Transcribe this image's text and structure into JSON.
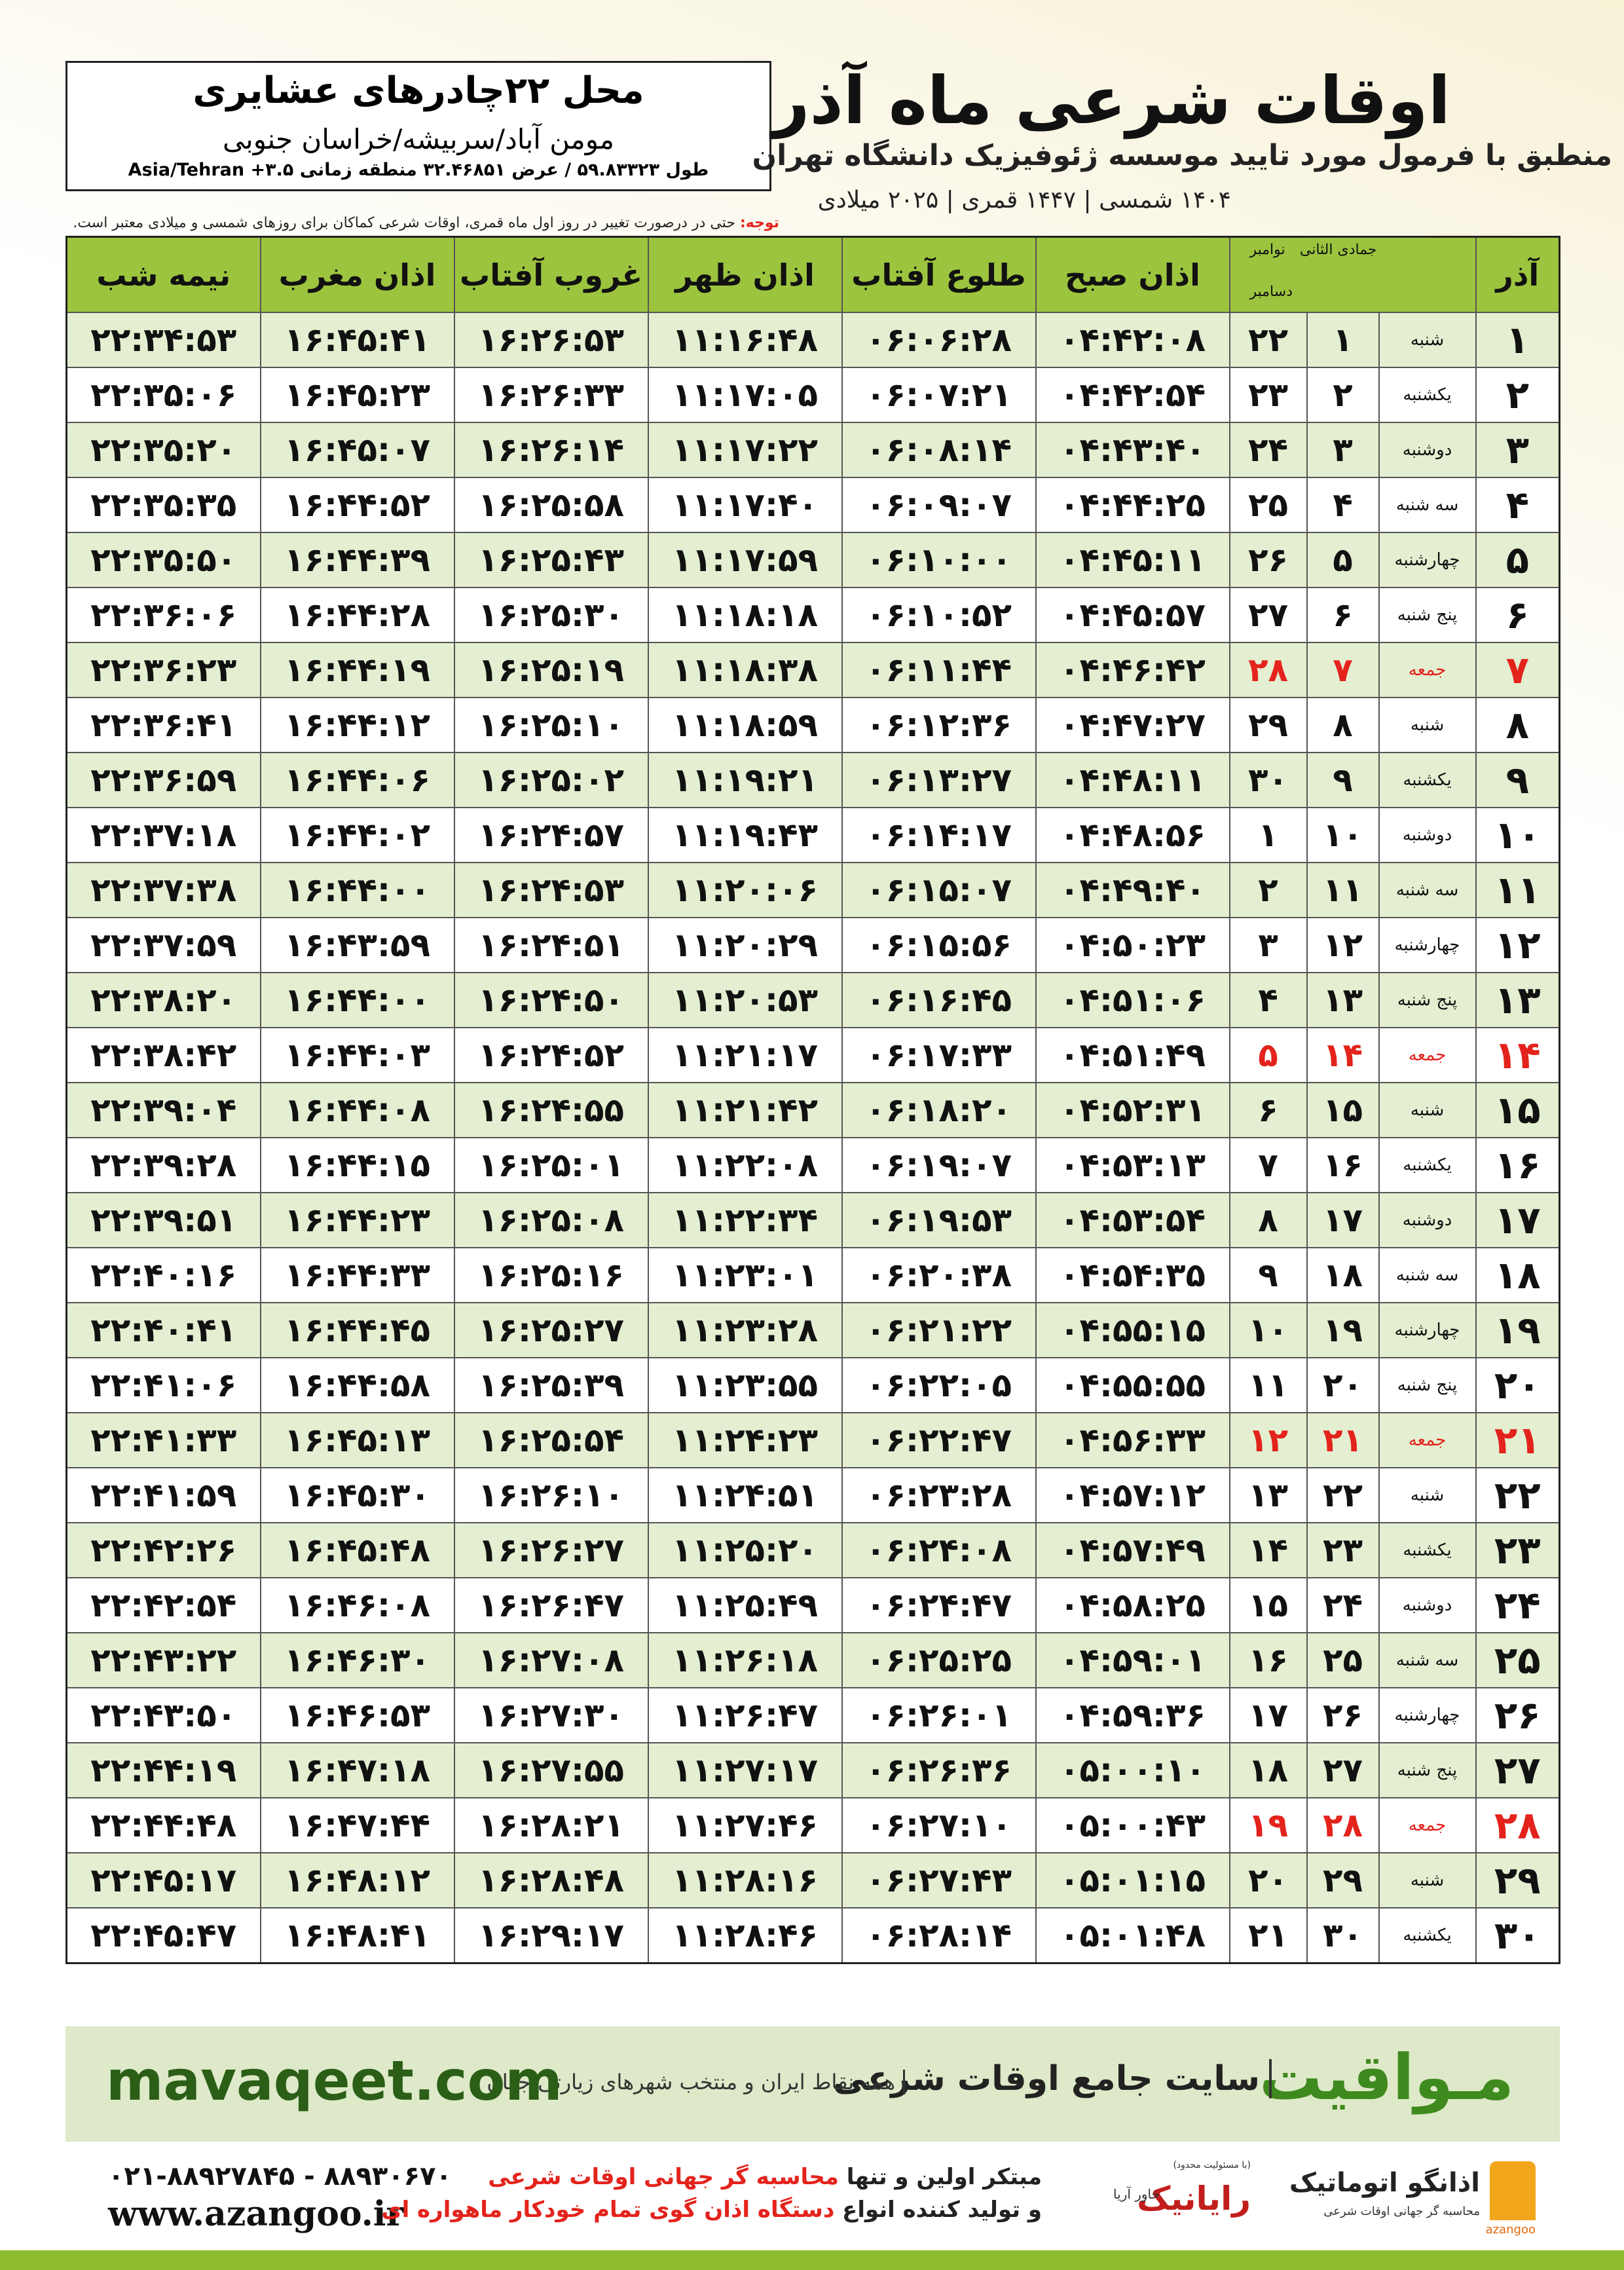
{
  "header": {
    "title": "اوقات شرعی ماه آذر",
    "subtitle": "منطبق با فرمول مورد تایید موسسه ژئوفیزیک دانشگاه تهران",
    "dates": "۱۴۰۴ شمسی | ۱۴۴۷ قمری | ۲۰۲۵ میلادی"
  },
  "location": {
    "name": "محل ۲۲چادرهای عشایری",
    "region": "مومن آباد/سربیشه/خراسان جنوبی",
    "coords": "طول ۵۹.۸۳۳۲۳ / عرض ۳۲.۴۶۸۵۱ منطقه زمانی ۳.۵+ Asia/Tehran"
  },
  "note": {
    "label": "توجه:",
    "text": "حتی در درصورت تغییر در روز اول ماه قمری، اوقات شرعی کماکان برای روزهای شمسی و میلادی معتبر است."
  },
  "table": {
    "month_header": "آذر",
    "lunar_header": "جمادی الثانی",
    "gregorian_headers": [
      "نوامبر",
      "دسامبر"
    ],
    "time_headers": [
      "اذان صبح",
      "طلوع آفتاب",
      "اذان ظهر",
      "غروب آفتاب",
      "اذان مغرب",
      "نیمه شب"
    ],
    "holiday_color": "#e3231c",
    "rows": [
      {
        "cells": [
          "۱",
          "شنبه",
          "۱",
          "۲۲",
          "۰۴:۴۲:۰۸",
          "۰۶:۰۶:۲۸",
          "۱۱:۱۶:۴۸",
          "۱۶:۲۶:۵۳",
          "۱۶:۴۵:۴۱",
          "۲۲:۳۴:۵۳"
        ]
      },
      {
        "cells": [
          "۲",
          "یکشنبه",
          "۲",
          "۲۳",
          "۰۴:۴۲:۵۴",
          "۰۶:۰۷:۲۱",
          "۱۱:۱۷:۰۵",
          "۱۶:۲۶:۳۳",
          "۱۶:۴۵:۲۳",
          "۲۲:۳۵:۰۶"
        ]
      },
      {
        "cells": [
          "۳",
          "دوشنبه",
          "۳",
          "۲۴",
          "۰۴:۴۳:۴۰",
          "۰۶:۰۸:۱۴",
          "۱۱:۱۷:۲۲",
          "۱۶:۲۶:۱۴",
          "۱۶:۴۵:۰۷",
          "۲۲:۳۵:۲۰"
        ]
      },
      {
        "cells": [
          "۴",
          "سه شنبه",
          "۴",
          "۲۵",
          "۰۴:۴۴:۲۵",
          "۰۶:۰۹:۰۷",
          "۱۱:۱۷:۴۰",
          "۱۶:۲۵:۵۸",
          "۱۶:۴۴:۵۲",
          "۲۲:۳۵:۳۵"
        ]
      },
      {
        "cells": [
          "۵",
          "چهارشنبه",
          "۵",
          "۲۶",
          "۰۴:۴۵:۱۱",
          "۰۶:۱۰:۰۰",
          "۱۱:۱۷:۵۹",
          "۱۶:۲۵:۴۳",
          "۱۶:۴۴:۳۹",
          "۲۲:۳۵:۵۰"
        ]
      },
      {
        "cells": [
          "۶",
          "پنج شنبه",
          "۶",
          "۲۷",
          "۰۴:۴۵:۵۷",
          "۰۶:۱۰:۵۲",
          "۱۱:۱۸:۱۸",
          "۱۶:۲۵:۳۰",
          "۱۶:۴۴:۲۸",
          "۲۲:۳۶:۰۶"
        ]
      },
      {
        "cells": [
          "۷",
          "جمعه",
          "۷",
          "۲۸",
          "۰۴:۴۶:۴۲",
          "۰۶:۱۱:۴۴",
          "۱۱:۱۸:۳۸",
          "۱۶:۲۵:۱۹",
          "۱۶:۴۴:۱۹",
          "۲۲:۳۶:۲۳"
        ],
        "holiday": true
      },
      {
        "cells": [
          "۸",
          "شنبه",
          "۸",
          "۲۹",
          "۰۴:۴۷:۲۷",
          "۰۶:۱۲:۳۶",
          "۱۱:۱۸:۵۹",
          "۱۶:۲۵:۱۰",
          "۱۶:۴۴:۱۲",
          "۲۲:۳۶:۴۱"
        ]
      },
      {
        "cells": [
          "۹",
          "یکشنبه",
          "۹",
          "۳۰",
          "۰۴:۴۸:۱۱",
          "۰۶:۱۳:۲۷",
          "۱۱:۱۹:۲۱",
          "۱۶:۲۵:۰۲",
          "۱۶:۴۴:۰۶",
          "۲۲:۳۶:۵۹"
        ]
      },
      {
        "cells": [
          "۱۰",
          "دوشنبه",
          "۱۰",
          "۱",
          "۰۴:۴۸:۵۶",
          "۰۶:۱۴:۱۷",
          "۱۱:۱۹:۴۳",
          "۱۶:۲۴:۵۷",
          "۱۶:۴۴:۰۲",
          "۲۲:۳۷:۱۸"
        ]
      },
      {
        "cells": [
          "۱۱",
          "سه شنبه",
          "۱۱",
          "۲",
          "۰۴:۴۹:۴۰",
          "۰۶:۱۵:۰۷",
          "۱۱:۲۰:۰۶",
          "۱۶:۲۴:۵۳",
          "۱۶:۴۴:۰۰",
          "۲۲:۳۷:۳۸"
        ]
      },
      {
        "cells": [
          "۱۲",
          "چهارشنبه",
          "۱۲",
          "۳",
          "۰۴:۵۰:۲۳",
          "۰۶:۱۵:۵۶",
          "۱۱:۲۰:۲۹",
          "۱۶:۲۴:۵۱",
          "۱۶:۴۳:۵۹",
          "۲۲:۳۷:۵۹"
        ]
      },
      {
        "cells": [
          "۱۳",
          "پنج شنبه",
          "۱۳",
          "۴",
          "۰۴:۵۱:۰۶",
          "۰۶:۱۶:۴۵",
          "۱۱:۲۰:۵۳",
          "۱۶:۲۴:۵۰",
          "۱۶:۴۴:۰۰",
          "۲۲:۳۸:۲۰"
        ]
      },
      {
        "cells": [
          "۱۴",
          "جمعه",
          "۱۴",
          "۵",
          "۰۴:۵۱:۴۹",
          "۰۶:۱۷:۳۳",
          "۱۱:۲۱:۱۷",
          "۱۶:۲۴:۵۲",
          "۱۶:۴۴:۰۳",
          "۲۲:۳۸:۴۲"
        ],
        "holiday": true
      },
      {
        "cells": [
          "۱۵",
          "شنبه",
          "۱۵",
          "۶",
          "۰۴:۵۲:۳۱",
          "۰۶:۱۸:۲۰",
          "۱۱:۲۱:۴۲",
          "۱۶:۲۴:۵۵",
          "۱۶:۴۴:۰۸",
          "۲۲:۳۹:۰۴"
        ]
      },
      {
        "cells": [
          "۱۶",
          "یکشنبه",
          "۱۶",
          "۷",
          "۰۴:۵۳:۱۳",
          "۰۶:۱۹:۰۷",
          "۱۱:۲۲:۰۸",
          "۱۶:۲۵:۰۱",
          "۱۶:۴۴:۱۵",
          "۲۲:۳۹:۲۸"
        ]
      },
      {
        "cells": [
          "۱۷",
          "دوشنبه",
          "۱۷",
          "۸",
          "۰۴:۵۳:۵۴",
          "۰۶:۱۹:۵۳",
          "۱۱:۲۲:۳۴",
          "۱۶:۲۵:۰۸",
          "۱۶:۴۴:۲۳",
          "۲۲:۳۹:۵۱"
        ]
      },
      {
        "cells": [
          "۱۸",
          "سه شنبه",
          "۱۸",
          "۹",
          "۰۴:۵۴:۳۵",
          "۰۶:۲۰:۳۸",
          "۱۱:۲۳:۰۱",
          "۱۶:۲۵:۱۶",
          "۱۶:۴۴:۳۳",
          "۲۲:۴۰:۱۶"
        ]
      },
      {
        "cells": [
          "۱۹",
          "چهارشنبه",
          "۱۹",
          "۱۰",
          "۰۴:۵۵:۱۵",
          "۰۶:۲۱:۲۲",
          "۱۱:۲۳:۲۸",
          "۱۶:۲۵:۲۷",
          "۱۶:۴۴:۴۵",
          "۲۲:۴۰:۴۱"
        ]
      },
      {
        "cells": [
          "۲۰",
          "پنج شنبه",
          "۲۰",
          "۱۱",
          "۰۴:۵۵:۵۵",
          "۰۶:۲۲:۰۵",
          "۱۱:۲۳:۵۵",
          "۱۶:۲۵:۳۹",
          "۱۶:۴۴:۵۸",
          "۲۲:۴۱:۰۶"
        ]
      },
      {
        "cells": [
          "۲۱",
          "جمعه",
          "۲۱",
          "۱۲",
          "۰۴:۵۶:۳۳",
          "۰۶:۲۲:۴۷",
          "۱۱:۲۴:۲۳",
          "۱۶:۲۵:۵۴",
          "۱۶:۴۵:۱۳",
          "۲۲:۴۱:۳۳"
        ],
        "holiday": true
      },
      {
        "cells": [
          "۲۲",
          "شنبه",
          "۲۲",
          "۱۳",
          "۰۴:۵۷:۱۲",
          "۰۶:۲۳:۲۸",
          "۱۱:۲۴:۵۱",
          "۱۶:۲۶:۱۰",
          "۱۶:۴۵:۳۰",
          "۲۲:۴۱:۵۹"
        ]
      },
      {
        "cells": [
          "۲۳",
          "یکشنبه",
          "۲۳",
          "۱۴",
          "۰۴:۵۷:۴۹",
          "۰۶:۲۴:۰۸",
          "۱۱:۲۵:۲۰",
          "۱۶:۲۶:۲۷",
          "۱۶:۴۵:۴۸",
          "۲۲:۴۲:۲۶"
        ]
      },
      {
        "cells": [
          "۲۴",
          "دوشنبه",
          "۲۴",
          "۱۵",
          "۰۴:۵۸:۲۵",
          "۰۶:۲۴:۴۷",
          "۱۱:۲۵:۴۹",
          "۱۶:۲۶:۴۷",
          "۱۶:۴۶:۰۸",
          "۲۲:۴۲:۵۴"
        ]
      },
      {
        "cells": [
          "۲۵",
          "سه شنبه",
          "۲۵",
          "۱۶",
          "۰۴:۵۹:۰۱",
          "۰۶:۲۵:۲۵",
          "۱۱:۲۶:۱۸",
          "۱۶:۲۷:۰۸",
          "۱۶:۴۶:۳۰",
          "۲۲:۴۳:۲۲"
        ]
      },
      {
        "cells": [
          "۲۶",
          "چهارشنبه",
          "۲۶",
          "۱۷",
          "۰۴:۵۹:۳۶",
          "۰۶:۲۶:۰۱",
          "۱۱:۲۶:۴۷",
          "۱۶:۲۷:۳۰",
          "۱۶:۴۶:۵۳",
          "۲۲:۴۳:۵۰"
        ]
      },
      {
        "cells": [
          "۲۷",
          "پنج شنبه",
          "۲۷",
          "۱۸",
          "۰۵:۰۰:۱۰",
          "۰۶:۲۶:۳۶",
          "۱۱:۲۷:۱۷",
          "۱۶:۲۷:۵۵",
          "۱۶:۴۷:۱۸",
          "۲۲:۴۴:۱۹"
        ]
      },
      {
        "cells": [
          "۲۸",
          "جمعه",
          "۲۸",
          "۱۹",
          "۰۵:۰۰:۴۳",
          "۰۶:۲۷:۱۰",
          "۱۱:۲۷:۴۶",
          "۱۶:۲۸:۲۱",
          "۱۶:۴۷:۴۴",
          "۲۲:۴۴:۴۸"
        ],
        "holiday": true
      },
      {
        "cells": [
          "۲۹",
          "شنبه",
          "۲۹",
          "۲۰",
          "۰۵:۰۱:۱۵",
          "۰۶:۲۷:۴۳",
          "۱۱:۲۸:۱۶",
          "۱۶:۲۸:۴۸",
          "۱۶:۴۸:۱۲",
          "۲۲:۴۵:۱۷"
        ]
      },
      {
        "cells": [
          "۳۰",
          "یکشنبه",
          "۳۰",
          "۲۱",
          "۰۵:۰۱:۴۸",
          "۰۶:۲۸:۱۴",
          "۱۱:۲۸:۴۶",
          "۱۶:۲۹:۱۷",
          "۱۶:۴۸:۴۱",
          "۲۲:۴۵:۴۷"
        ]
      }
    ]
  },
  "banner": {
    "brand": "مـواقیت",
    "slogan": "سایت جامع اوقات شرعی",
    "coverage": "همه نقاط ایران و منتخب شهرهای زیارتی جهان",
    "website": "mavaqeet.com"
  },
  "footer": {
    "phone": "۰۲۱-۸۸۹۲۷۸۴۵ - ۸۸۹۳۰۶۷۰",
    "website": "www.azangoo.ir",
    "line1": [
      "مبتکر اولین و تنها",
      "محاسبه گر جهانی اوقات شرعی"
    ],
    "line2": [
      "و تولید کننده انواع",
      "دستگاه اذان گوی تمام خودکار ماهواره ای"
    ],
    "logos": {
      "rayanik": "رایانیک",
      "rayanik_note": "(با مسئولیت محدود)",
      "khavar": "خاور آریا",
      "azangoo": "اذانگو اتوماتیک",
      "azangoo_sub": "محاسبه گر جهانی اوقات شرعی",
      "azangoo_latin": "azangoo"
    }
  }
}
